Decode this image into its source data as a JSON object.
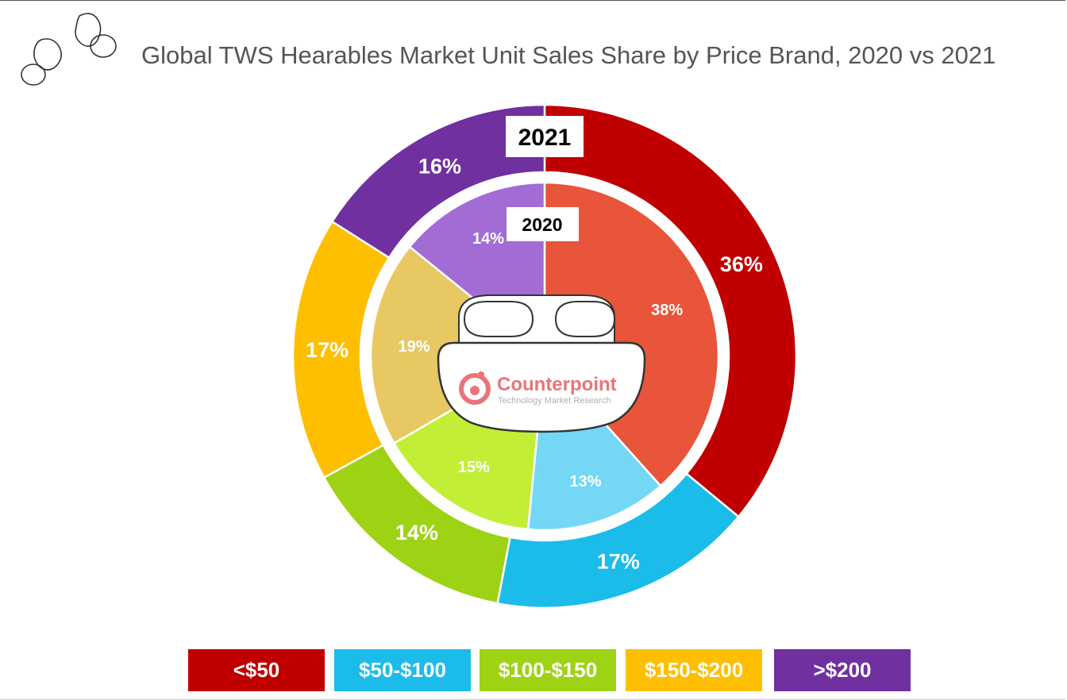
{
  "title": "Global TWS Hearables Market Unit Sales Share by Price Brand, 2020 vs 2021",
  "logo": {
    "name": "Counterpoint",
    "tagline": "Technology Market Research",
    "color": "#e8747a"
  },
  "chart_data": {
    "type": "donut",
    "title": "Global TWS Hearables Market Unit Sales Share by Price Brand, 2020 vs 2021",
    "categories": [
      "<$50",
      "$50-$100",
      "$100-$150",
      "$150-$200",
      ">$200"
    ],
    "series": [
      {
        "name": "2021",
        "ring": "outer",
        "values": [
          36,
          17,
          14,
          17,
          16
        ],
        "labels": [
          "36%",
          "17%",
          "14%",
          "17%",
          "16%"
        ],
        "colors": [
          "#c00000",
          "#1bbce9",
          "#9ed315",
          "#fdbf00",
          "#7030a0"
        ]
      },
      {
        "name": "2020",
        "ring": "inner",
        "values": [
          38,
          13,
          15,
          19,
          14
        ],
        "labels": [
          "38%",
          "13%",
          "15%",
          "19%",
          "14%"
        ],
        "colors": [
          "#e8553a",
          "#74d7f5",
          "#c2ee36",
          "#e8c862",
          "#a26cd4"
        ]
      }
    ],
    "legend": {
      "position": "bottom",
      "items": [
        {
          "label": "<$50",
          "color": "#c00000"
        },
        {
          "label": "$50-$100",
          "color": "#1bbce9"
        },
        {
          "label": "$100-$150",
          "color": "#9ed315"
        },
        {
          "label": "$150-$200",
          "color": "#fdbf00"
        },
        {
          "label": ">$200",
          "color": "#7030a0"
        }
      ]
    }
  }
}
